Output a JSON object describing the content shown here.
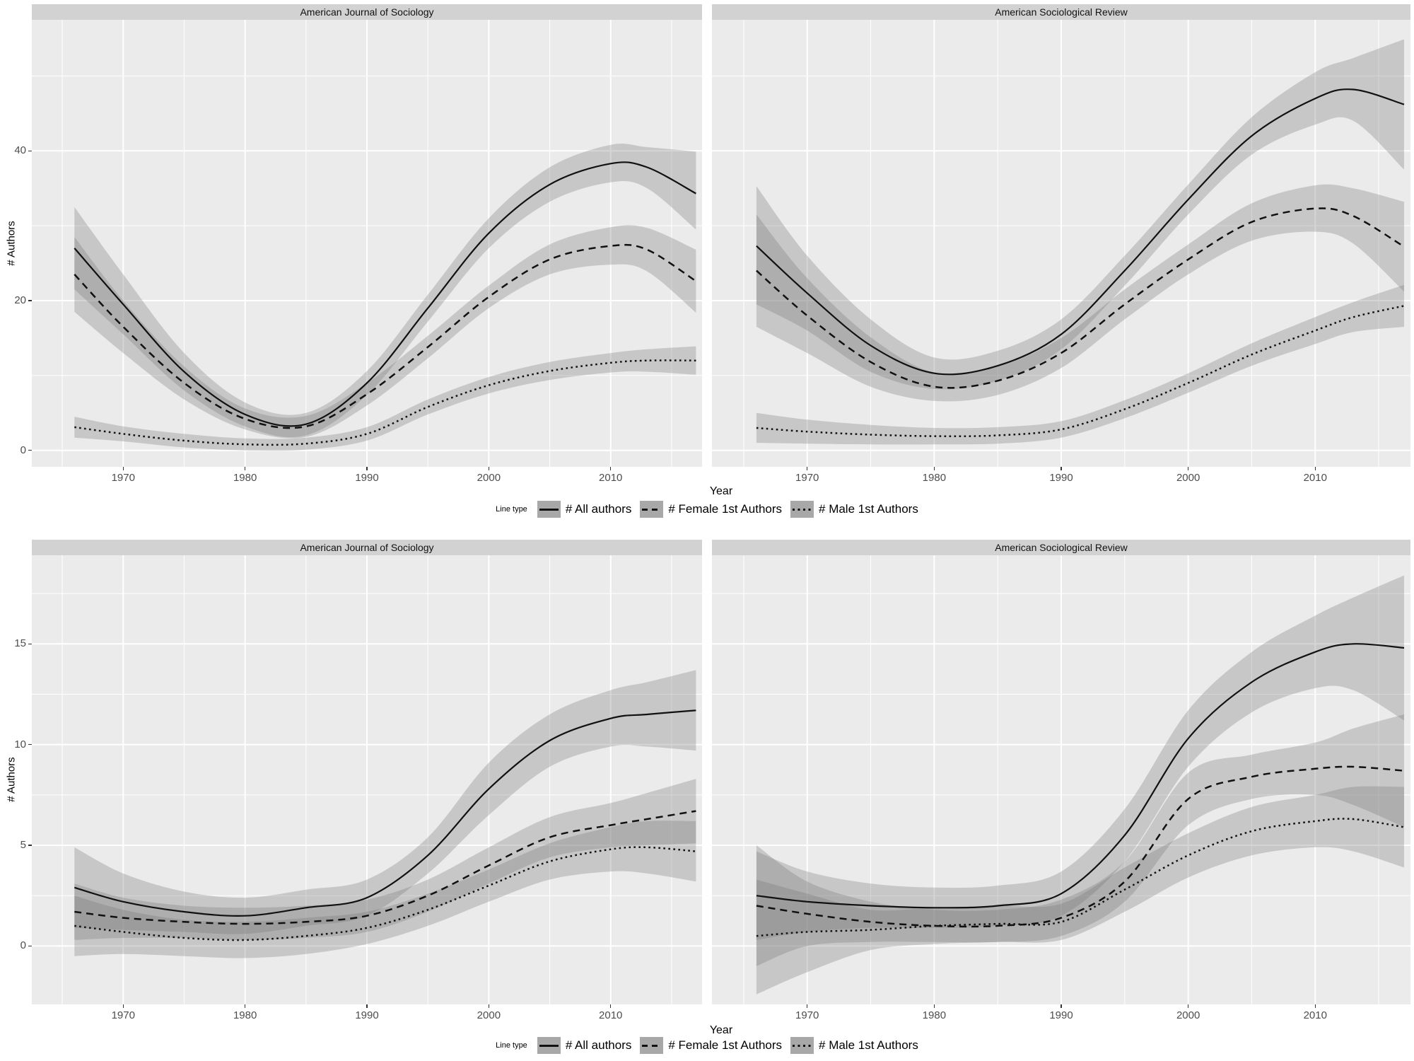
{
  "colors": {
    "page_bg": "#ffffff",
    "panel_bg": "#ebebeb",
    "strip_bg": "#d2d2d2",
    "grid": "#ffffff",
    "ribbon": "rgba(115,115,115,0.30)",
    "line": "#111111",
    "tick_text": "#4d4d4d",
    "tick_mark": "#333333",
    "legend_key_bg": "#a8a8a8"
  },
  "legend": {
    "title": "Line type",
    "items": [
      {
        "label": "# All authors",
        "linetype": "solid"
      },
      {
        "label": "# Female 1st Authors",
        "linetype": "dashed"
      },
      {
        "label": "# Male 1st Authors",
        "linetype": "dotted"
      }
    ]
  },
  "chart_data": [
    {
      "type": "line",
      "position": "top",
      "xlabel": "Year",
      "ylabel": "# Authors",
      "grid": true,
      "legend_position": "bottom",
      "xlim": [
        1962.5,
        2017.5
      ],
      "ylim": [
        -2.2,
        57.5
      ],
      "xticks": [
        1970,
        1980,
        1990,
        2000,
        2010
      ],
      "xminor": [
        1965,
        1975,
        1985,
        1995,
        2005,
        2015
      ],
      "yticks": [
        0,
        20,
        40
      ],
      "yminor": [
        10,
        30,
        50
      ],
      "x": [
        1966,
        1970,
        1975,
        1980,
        1985,
        1990,
        1995,
        2000,
        2005,
        2010,
        2013,
        2017
      ],
      "facets": [
        {
          "label": "American Journal of Sociology",
          "series": [
            {
              "name": "# All authors",
              "linetype": "solid",
              "y": [
                27,
                19.5,
                10.5,
                4.8,
                3.5,
                9,
                19,
                29,
                35.5,
                38.3,
                37.8,
                34.3
              ],
              "lo": [
                21.5,
                15.5,
                8,
                3.2,
                2,
                7.4,
                17.2,
                27,
                33.2,
                35.8,
                35,
                29.5
              ],
              "hi": [
                32.5,
                23.5,
                13,
                6.4,
                5,
                10.6,
                20.8,
                31,
                37.8,
                40.8,
                40.5,
                39.9
              ]
            },
            {
              "name": "# Female 1st Authors",
              "linetype": "dashed",
              "y": [
                23.5,
                16.5,
                9,
                4.2,
                3.2,
                7.5,
                13.8,
                20.5,
                25.5,
                27.3,
                26.8,
                22.6
              ],
              "lo": [
                18.5,
                13,
                6.8,
                2.8,
                1.8,
                6,
                12.3,
                19,
                23.5,
                24.8,
                23.9,
                18.4
              ],
              "hi": [
                28.5,
                20,
                11.2,
                5.6,
                4.6,
                9,
                15.3,
                22,
                27.5,
                29.8,
                29.7,
                26.8
              ]
            },
            {
              "name": "# Male 1st Authors",
              "linetype": "dotted",
              "y": [
                3.1,
                2.2,
                1.3,
                0.8,
                0.9,
                2.2,
                5.8,
                8.7,
                10.6,
                11.7,
                12,
                12
              ],
              "lo": [
                1.7,
                1.2,
                0.4,
                0,
                0.1,
                1.3,
                4.8,
                7.6,
                9.4,
                10.4,
                10.5,
                10.1
              ],
              "hi": [
                4.5,
                3.2,
                2.2,
                1.6,
                1.7,
                3.1,
                6.8,
                9.8,
                11.8,
                13,
                13.5,
                13.9
              ]
            }
          ]
        },
        {
          "label": "American Sociological Review",
          "series": [
            {
              "name": "# All authors",
              "linetype": "solid",
              "y": [
                27.3,
                21,
                14,
                10.3,
                11.3,
                15.5,
                24,
                33.5,
                42,
                47,
                48.2,
                46.2
              ],
              "lo": [
                19.5,
                16,
                10.5,
                8.2,
                9.3,
                13.5,
                22,
                31.5,
                39.5,
                43.5,
                44,
                37.5
              ],
              "hi": [
                35.3,
                26,
                17.5,
                12.4,
                13.3,
                17.5,
                26,
                35.5,
                44.5,
                50.5,
                52.4,
                54.9
              ]
            },
            {
              "name": "# Female 1st Authors",
              "linetype": "dashed",
              "y": [
                24,
                18,
                11.8,
                8.5,
                9.3,
                13,
                19.5,
                25.5,
                30.5,
                32.3,
                31.3,
                27.2
              ],
              "lo": [
                16.5,
                13,
                8.5,
                6.6,
                7.4,
                11,
                17.5,
                23.5,
                28,
                29.2,
                27.6,
                21.2
              ],
              "hi": [
                31.5,
                23,
                15.1,
                10.4,
                11.2,
                15,
                21.5,
                27.5,
                33,
                35.4,
                35,
                33.2
              ]
            },
            {
              "name": "# Male 1st Authors",
              "linetype": "dotted",
              "y": [
                3,
                2.5,
                2.1,
                1.9,
                2,
                2.8,
                5.5,
                9,
                12.8,
                16,
                17.8,
                19.3
              ],
              "lo": [
                1,
                0.9,
                0.8,
                0.8,
                0.9,
                1.7,
                4.3,
                7.7,
                11.3,
                14.2,
                15.8,
                16.5
              ],
              "hi": [
                5,
                4.1,
                3.4,
                3,
                3.1,
                3.9,
                6.7,
                10.3,
                14.3,
                17.8,
                19.8,
                22.1
              ]
            }
          ]
        }
      ]
    },
    {
      "type": "line",
      "position": "bottom",
      "xlabel": "Year",
      "ylabel": "# Authors",
      "grid": true,
      "legend_position": "bottom",
      "xlim": [
        1962.5,
        2017.5
      ],
      "ylim": [
        -2.9,
        19.4
      ],
      "xticks": [
        1970,
        1980,
        1990,
        2000,
        2010
      ],
      "xminor": [
        1965,
        1975,
        1985,
        1995,
        2005,
        2015
      ],
      "yticks": [
        0,
        5,
        10,
        15
      ],
      "yminor": [
        2.5,
        7.5,
        12.5,
        17.5
      ],
      "x": [
        1966,
        1970,
        1975,
        1980,
        1985,
        1990,
        1995,
        2000,
        2005,
        2010,
        2013,
        2017
      ],
      "facets": [
        {
          "label": "American Journal of Sociology",
          "series": [
            {
              "name": "# All authors",
              "linetype": "solid",
              "y": [
                2.9,
                2.2,
                1.7,
                1.5,
                1.9,
                2.4,
                4.5,
                7.8,
                10.2,
                11.3,
                11.5,
                11.7
              ],
              "lo": [
                0.9,
                0.8,
                0.7,
                0.6,
                1,
                1.5,
                3.6,
                6.5,
                8.9,
                9.9,
                9.9,
                9.7
              ],
              "hi": [
                4.9,
                3.6,
                2.7,
                2.4,
                2.8,
                3.3,
                5.4,
                9.1,
                11.5,
                12.7,
                13.1,
                13.7
              ]
            },
            {
              "name": "# Female 1st Authors",
              "linetype": "dashed",
              "y": [
                1.7,
                1.4,
                1.2,
                1.1,
                1.2,
                1.5,
                2.5,
                4,
                5.4,
                6,
                6.3,
                6.7
              ],
              "lo": [
                0.3,
                0.4,
                0.4,
                0.3,
                0.4,
                0.7,
                1.7,
                3.1,
                4.4,
                4.9,
                5,
                5.1
              ],
              "hi": [
                3.1,
                2.4,
                2,
                1.9,
                2,
                2.3,
                3.3,
                4.9,
                6.4,
                7.1,
                7.6,
                8.3
              ]
            },
            {
              "name": "# Male 1st Authors",
              "linetype": "dotted",
              "y": [
                1,
                0.7,
                0.4,
                0.3,
                0.5,
                0.9,
                1.8,
                3,
                4.2,
                4.8,
                4.9,
                4.7
              ],
              "lo": [
                -0.5,
                -0.4,
                -0.5,
                -0.6,
                -0.4,
                0.1,
                1,
                2.2,
                3.3,
                3.7,
                3.6,
                3.2
              ],
              "hi": [
                2.5,
                1.8,
                1.3,
                1.2,
                1.4,
                1.7,
                2.6,
                3.8,
                5.1,
                5.9,
                6.2,
                6.2
              ]
            }
          ]
        },
        {
          "label": "American Sociological Review",
          "series": [
            {
              "name": "# All authors",
              "linetype": "solid",
              "y": [
                2.5,
                2.2,
                2,
                1.9,
                2,
                2.6,
                5.5,
                10.3,
                13.1,
                14.6,
                15,
                14.8
              ],
              "lo": [
                0.3,
                0.7,
                0.9,
                0.9,
                1,
                1.5,
                4.2,
                8.9,
                11.6,
                12.8,
                12.7,
                11.2
              ],
              "hi": [
                4.7,
                3.7,
                3.1,
                2.9,
                3,
                3.7,
                6.8,
                11.7,
                14.6,
                16.4,
                17.3,
                18.4
              ]
            },
            {
              "name": "# Female 1st Authors",
              "linetype": "dashed",
              "y": [
                2,
                1.6,
                1.2,
                1,
                1,
                1.4,
                3.2,
                7.3,
                8.4,
                8.8,
                8.9,
                8.7
              ],
              "lo": [
                -1,
                0,
                0.2,
                0.2,
                0.2,
                0.5,
                2.2,
                6,
                7.3,
                7.5,
                7,
                5.9
              ],
              "hi": [
                5,
                3.2,
                2.2,
                1.8,
                1.8,
                2.3,
                4.2,
                8.6,
                9.5,
                10.1,
                10.8,
                11.5
              ]
            },
            {
              "name": "# Male 1st Authors",
              "linetype": "dotted",
              "y": [
                0.5,
                0.7,
                0.8,
                1,
                1.1,
                1.2,
                2.8,
                4.5,
                5.7,
                6.2,
                6.3,
                5.9
              ],
              "lo": [
                -2.4,
                -1.3,
                -0.2,
                0.1,
                0.2,
                0.3,
                1.7,
                3.4,
                4.5,
                4.9,
                4.7,
                3.9
              ],
              "hi": [
                3.3,
                2.6,
                1.8,
                1.9,
                2,
                2.1,
                3.9,
                5.6,
                6.9,
                7.5,
                7.9,
                7.9
              ]
            }
          ]
        }
      ]
    }
  ]
}
